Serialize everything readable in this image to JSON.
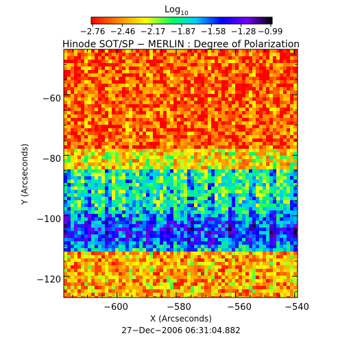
{
  "colorbar": {
    "title": "Log",
    "title_subscript": "10",
    "tick_labels": [
      "−2.76",
      "−2.46",
      "−2.17",
      "−1.87",
      "−1.58",
      "−1.28",
      "−0.99"
    ],
    "range": [
      -2.76,
      -0.99
    ],
    "colors": [
      "#ff0000",
      "#ff8800",
      "#ffff00",
      "#00ff66",
      "#00ccff",
      "#0000ff",
      "#7700ff",
      "#000000"
    ]
  },
  "plot": {
    "title": "Hinode SOT/SP − MERLIN : Degree of Polarization",
    "xlabel": "X (Arcseconds)",
    "ylabel": "Y (Arcseconds)",
    "x_ticks": [
      "−600",
      "−580",
      "−560",
      "−540"
    ],
    "y_ticks": [
      "−60",
      "−80",
      "−100",
      "−120"
    ],
    "xlim": [
      -618,
      -539
    ],
    "ylim": [
      -127,
      -45
    ],
    "timestamp": "27−Dec−2006 06:31:04.882"
  },
  "map_data": {
    "type": "heatmap",
    "x_values": [
      -600,
      -580,
      -560,
      -540
    ],
    "y_values": [
      -60,
      -80,
      -100,
      -120
    ]
  }
}
